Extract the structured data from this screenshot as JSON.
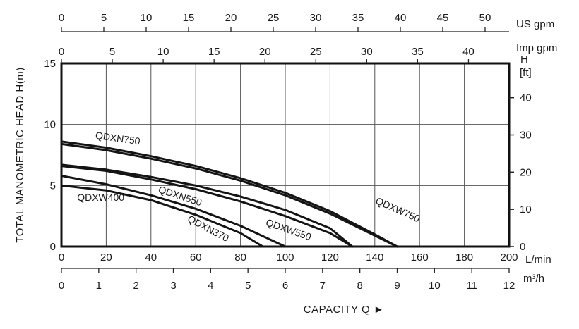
{
  "chart_data": {
    "type": "line",
    "xlabel": "CAPACITY Q ►",
    "ylabel": "TOTAL MANOMETRIC HEAD H(m)",
    "grid": true,
    "axes": {
      "lmin": {
        "unit": "L/min",
        "range": [
          0,
          200
        ],
        "ticks": [
          "0",
          "20",
          "40",
          "60",
          "80",
          "100",
          "120",
          "140",
          "160",
          "180",
          "200"
        ]
      },
      "m3h": {
        "unit": "m³/h",
        "range": [
          0,
          12
        ],
        "ticks": [
          "0",
          "1",
          "2",
          "3",
          "4",
          "5",
          "6",
          "7",
          "8",
          "9",
          "10",
          "11",
          "12"
        ]
      },
      "us_gpm": {
        "unit": "US gpm",
        "ticks": [
          "0",
          "5",
          "10",
          "15",
          "20",
          "25",
          "30",
          "35",
          "40",
          "45",
          "50"
        ]
      },
      "imp_gpm": {
        "unit": "Imp gpm",
        "ticks": [
          "0",
          "5",
          "10",
          "15",
          "20",
          "25",
          "30",
          "35",
          "40"
        ]
      },
      "head_m": {
        "range": [
          0,
          15
        ],
        "ticks": [
          "0",
          "5",
          "10",
          "15"
        ]
      },
      "head_ft": {
        "unit_line1": "H",
        "unit_line2": "[ft]",
        "ticks": [
          "0",
          "10",
          "20",
          "30",
          "40"
        ]
      }
    },
    "series": [
      {
        "name": "QDXN750",
        "x": [
          0,
          20,
          40,
          60,
          80,
          100,
          120,
          140,
          150
        ],
        "y": [
          8.6,
          8.1,
          7.4,
          6.6,
          5.6,
          4.4,
          2.9,
          1.0,
          0
        ]
      },
      {
        "name": "QDXW750",
        "x": [
          0,
          20,
          40,
          60,
          80,
          100,
          120,
          140,
          150
        ],
        "y": [
          8.4,
          7.9,
          7.2,
          6.4,
          5.4,
          4.2,
          2.7,
          0.9,
          0
        ]
      },
      {
        "name": "QDXW550",
        "x": [
          0,
          20,
          40,
          60,
          80,
          100,
          120,
          130
        ],
        "y": [
          6.7,
          6.3,
          5.7,
          5.0,
          4.1,
          3.0,
          1.5,
          0
        ]
      },
      {
        "name": "QDXN550",
        "x": [
          0,
          20,
          40,
          60,
          80,
          100,
          120,
          130
        ],
        "y": [
          6.6,
          6.2,
          5.5,
          4.7,
          3.7,
          2.5,
          1.1,
          0
        ]
      },
      {
        "name": "QDXN370",
        "x": [
          0,
          20,
          40,
          60,
          80,
          100
        ],
        "y": [
          5.8,
          5.1,
          4.2,
          3.1,
          1.7,
          0
        ]
      },
      {
        "name": "QDXW400",
        "x": [
          0,
          20,
          40,
          60,
          80,
          90
        ],
        "y": [
          5.0,
          4.6,
          3.8,
          2.6,
          1.1,
          0
        ]
      }
    ]
  }
}
